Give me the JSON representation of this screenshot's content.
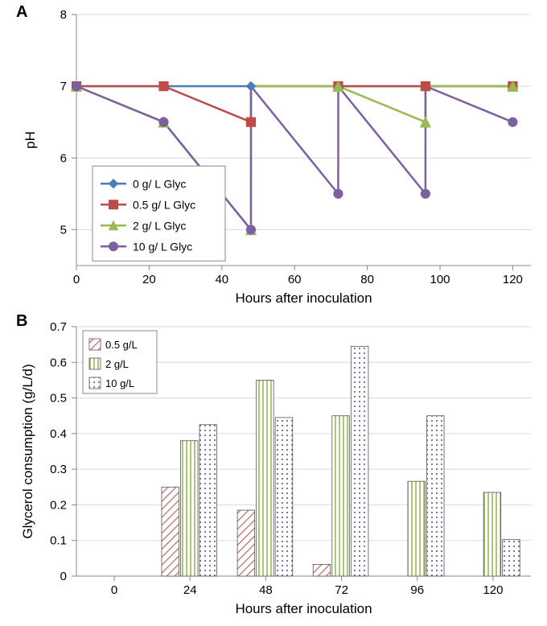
{
  "panelA": {
    "label": "A",
    "type": "line",
    "ylabel": "pH",
    "xlabel": "Hours after inoculation",
    "xlim": [
      0,
      125
    ],
    "ylim": [
      4.5,
      8
    ],
    "xticks": [
      0,
      20,
      40,
      60,
      80,
      100,
      120
    ],
    "yticks": [
      5,
      6,
      7,
      8
    ],
    "label_fontsize": 17,
    "tick_fontsize": 15,
    "background_color": "#ffffff",
    "grid_color": "#d9d9d9",
    "series": [
      {
        "name": "0 g/ L Glyc",
        "color": "#4a7ebb",
        "marker": "diamond",
        "marker_size": 8,
        "line_width": 2.5,
        "x": [
          0,
          24,
          48,
          72,
          96,
          120
        ],
        "y": [
          7,
          7,
          7,
          7,
          7,
          7
        ]
      },
      {
        "name": "0.5 g/ L Glyc",
        "color": "#be4b48",
        "marker": "square",
        "marker_size": 8,
        "line_width": 2.5,
        "x": [
          0,
          24,
          48,
          48.01,
          72,
          96,
          120
        ],
        "y": [
          7,
          7,
          6.5,
          7,
          7,
          7,
          7
        ]
      },
      {
        "name": "2 g/ L Glyc",
        "color": "#98b954",
        "marker": "triangle",
        "marker_size": 9,
        "line_width": 2.5,
        "x": [
          0,
          24,
          48,
          48.01,
          72,
          96,
          96.01,
          120
        ],
        "y": [
          7,
          6.5,
          5,
          7,
          7,
          6.5,
          7,
          7
        ]
      },
      {
        "name": "10 g/ L Glyc",
        "color": "#7d60a0",
        "marker": "circle",
        "marker_size": 8,
        "line_width": 2.5,
        "x": [
          0,
          24,
          48,
          48.01,
          72,
          72.01,
          96,
          96.01,
          120
        ],
        "y": [
          7,
          6.5,
          5,
          7,
          5.5,
          7,
          5.5,
          7,
          6.5
        ]
      }
    ],
    "legend": {
      "position": "inside-lower-left",
      "entries": [
        {
          "label": "0 g/ L Glyc",
          "color": "#4a7ebb",
          "marker": "diamond"
        },
        {
          "label": "0.5 g/ L Glyc",
          "color": "#be4b48",
          "marker": "square"
        },
        {
          "label": "2 g/ L Glyc",
          "color": "#98b954",
          "marker": "triangle"
        },
        {
          "label": "10 g/ L Glyc",
          "color": "#7d60a0",
          "marker": "circle"
        }
      ]
    }
  },
  "panelB": {
    "label": "B",
    "type": "bar",
    "ylabel": "Glycerol consumption (g/L/d)",
    "xlabel": "Hours after inoculation",
    "xlim_categories": [
      0,
      24,
      48,
      72,
      96,
      120
    ],
    "ylim": [
      0,
      0.7
    ],
    "yticks": [
      0,
      0.1,
      0.2,
      0.3,
      0.4,
      0.5,
      0.6,
      0.7
    ],
    "label_fontsize": 17,
    "tick_fontsize": 15,
    "background_color": "#ffffff",
    "grid_color": "#d9d9d9",
    "bar_width": 0.25,
    "series": [
      {
        "name": "0.5 g/L",
        "pattern": "diagonal",
        "pattern_color": "#be4b48",
        "values": {
          "0": 0,
          "24": 0.25,
          "48": 0.185,
          "72": 0.033,
          "96": 0,
          "120": 0
        }
      },
      {
        "name": "2 g/L",
        "pattern": "vertical",
        "pattern_color": "#98b954",
        "values": {
          "0": 0,
          "24": 0.38,
          "48": 0.55,
          "72": 0.45,
          "96": 0.266,
          "120": 0.235
        }
      },
      {
        "name": "10 g/L",
        "pattern": "dots",
        "pattern_color": "#7d60a0",
        "values": {
          "0": 0,
          "24": 0.425,
          "48": 0.445,
          "72": 0.645,
          "96": 0.45,
          "120": 0.103
        }
      }
    ],
    "legend": {
      "position": "inside-upper-left",
      "entries": [
        {
          "label": "0.5 g/L",
          "pattern": "diagonal",
          "pattern_color": "#be4b48"
        },
        {
          "label": "2 g/L",
          "pattern": "vertical",
          "pattern_color": "#98b954"
        },
        {
          "label": "10 g/L",
          "pattern": "dots",
          "pattern_color": "#7d60a0"
        }
      ]
    }
  }
}
